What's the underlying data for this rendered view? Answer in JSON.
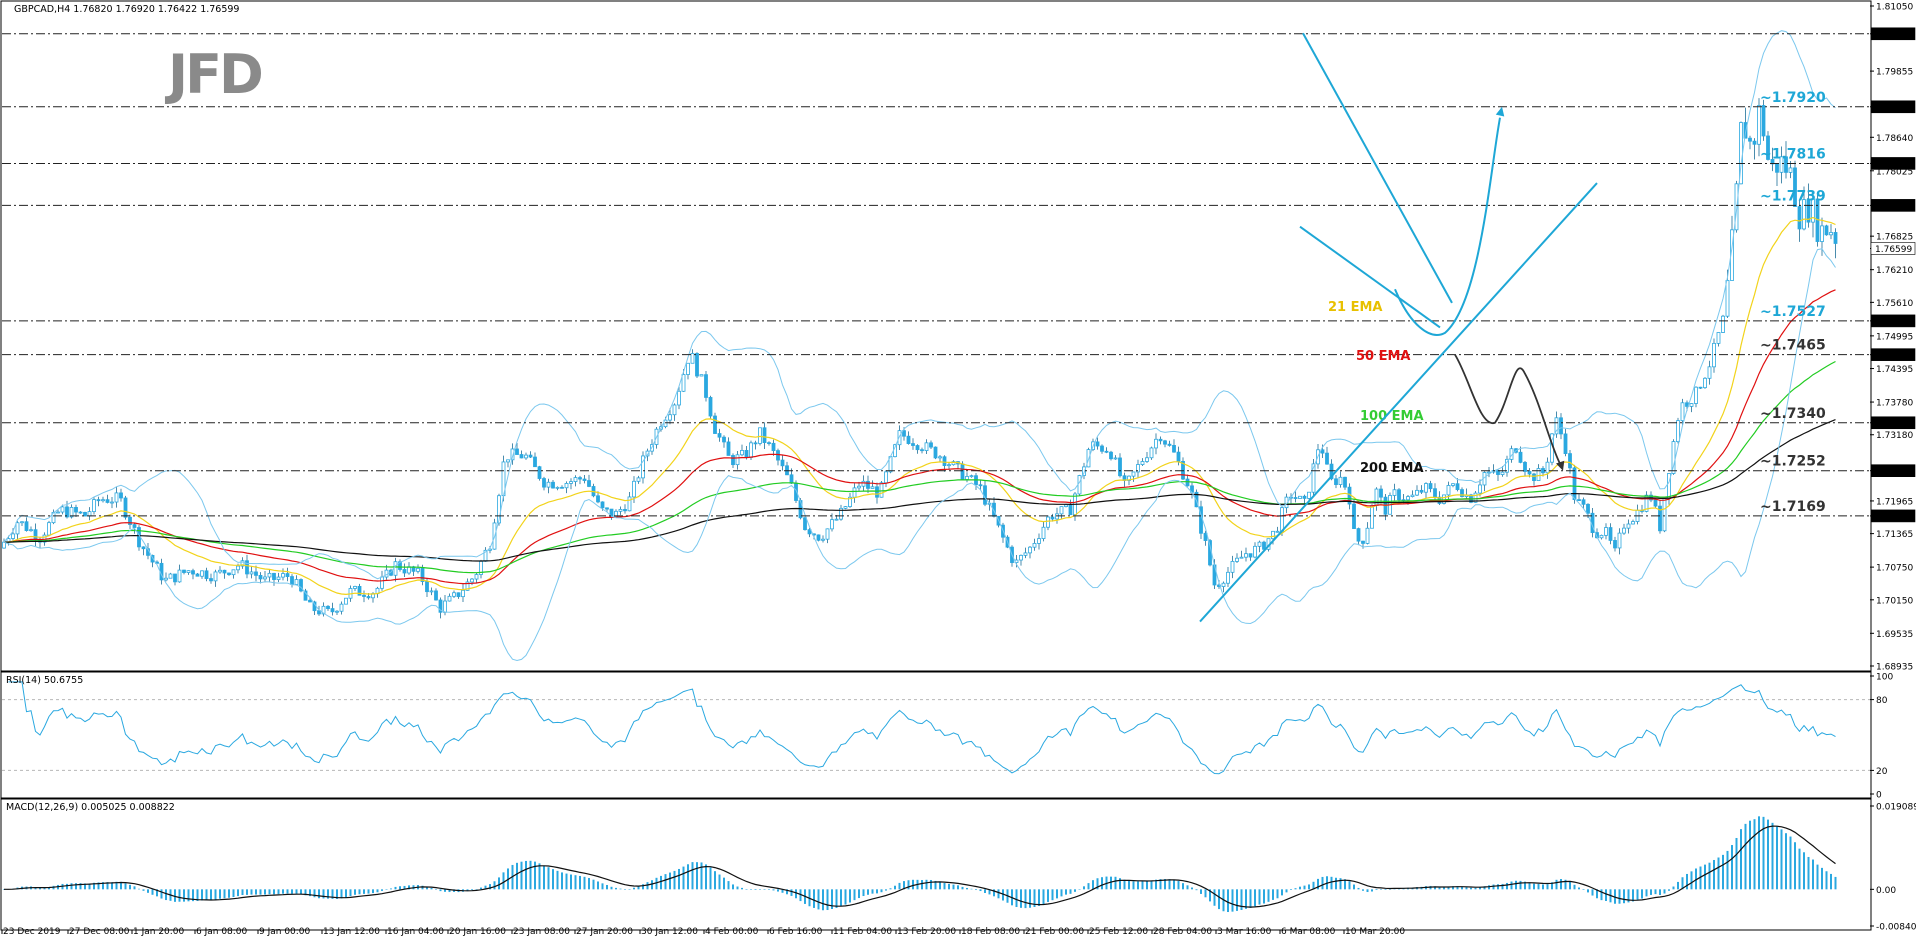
{
  "chart_data": [
    {
      "type": "candlestick",
      "header": "GBPCAD,H4  1.76820 1.76920 1.76422 1.76599",
      "symbol": "GBPCAD",
      "timeframe": "H4",
      "ohlc": {
        "open": 1.7682,
        "high": 1.7692,
        "low": 1.76422,
        "close": 1.76599
      },
      "current_price_label": "1.76599",
      "ylim": [
        1.68935,
        1.8105
      ],
      "y_ticks": [
        "1.81050",
        "1.80540",
        "1.79855",
        "1.79200",
        "1.78640",
        "1.78160",
        "1.78025",
        "1.77390",
        "1.76825",
        "1.76599",
        "1.76210",
        "1.75610",
        "1.75270",
        "1.74995",
        "1.74650",
        "1.74395",
        "1.73780",
        "1.73400",
        "1.73180",
        "1.72520",
        "1.71965",
        "1.71690",
        "1.71365",
        "1.70750",
        "1.70150",
        "1.69535",
        "1.68935"
      ],
      "highlighted_levels": [
        "1.80540",
        "1.79200",
        "1.78160",
        "1.77390",
        "1.76599",
        "1.75270",
        "1.74650",
        "1.73400",
        "1.72520",
        "1.71690"
      ],
      "level_annotations": [
        {
          "label": "~1.7920",
          "value": 1.792,
          "color": "#1ea7d6"
        },
        {
          "label": "~1.7816",
          "value": 1.7816,
          "color": "#1ea7d6"
        },
        {
          "label": "~1.7739",
          "value": 1.7739,
          "color": "#1ea7d6"
        },
        {
          "label": "~1.7527",
          "value": 1.7527,
          "color": "#1ea7d6"
        },
        {
          "label": "~1.7465",
          "value": 1.7465,
          "color": "#333333"
        },
        {
          "label": "~1.7340",
          "value": 1.734,
          "color": "#333333"
        },
        {
          "label": "~1.7252",
          "value": 1.7252,
          "color": "#333333"
        },
        {
          "label": "~1.7169",
          "value": 1.7169,
          "color": "#333333"
        }
      ],
      "dashed_levels": [
        1.8054,
        1.792,
        1.7816,
        1.7739,
        1.7527,
        1.7465,
        1.734,
        1.7252,
        1.7169
      ],
      "series": [
        {
          "name": "21 EMA",
          "color": "#f2d31b"
        },
        {
          "name": "50 EMA",
          "color": "#e01010"
        },
        {
          "name": "100 EMA",
          "color": "#22cc22"
        },
        {
          "name": "200 EMA",
          "color": "#111111"
        }
      ],
      "bollinger_color": "#7cc8ee",
      "candle_color": "#2aa8e0",
      "brand": "JFD"
    },
    {
      "type": "line",
      "header": "RSI(14) 50.6755",
      "ylim": [
        0,
        100
      ],
      "y_ticks": [
        "100",
        "80",
        "20",
        "0"
      ],
      "levels": [
        80,
        20
      ],
      "color": "#2aa8e0"
    },
    {
      "type": "bar",
      "header": "MACD(12,26,9) 0.005025 0.008822",
      "y_ticks": [
        "0.019089",
        "0.00",
        "-0.008401"
      ],
      "ylim": [
        -0.008401,
        0.019089
      ],
      "hist_color": "#2aa8e0",
      "signal_color": "#111111"
    }
  ],
  "x_ticks": [
    "23 Dec 2019",
    "27 Dec 08:00",
    "1 Jan 20:00",
    "6 Jan 08:00",
    "9 Jan 00:00",
    "13 Jan 12:00",
    "16 Jan 04:00",
    "20 Jan 16:00",
    "23 Jan 08:00",
    "27 Jan 20:00",
    "30 Jan 12:00",
    "4 Feb 00:00",
    "6 Feb 16:00",
    "11 Feb 04:00",
    "13 Feb 20:00",
    "18 Feb 08:00",
    "21 Feb 00:00",
    "25 Feb 12:00",
    "28 Feb 04:00",
    "3 Mar 16:00",
    "6 Mar 08:00",
    "10 Mar 20:00"
  ]
}
